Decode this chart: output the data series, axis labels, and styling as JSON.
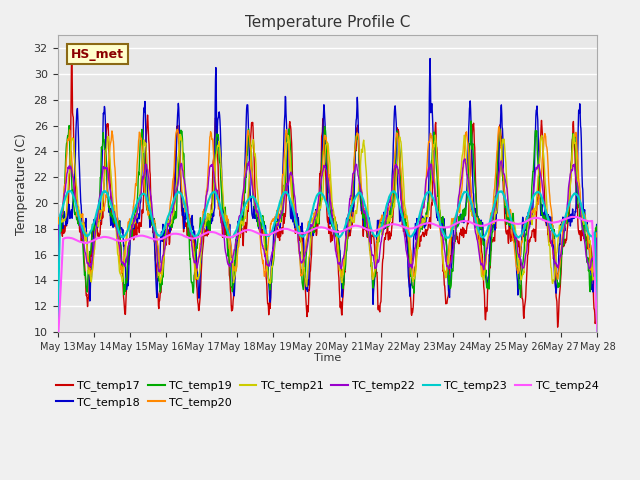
{
  "title": "Temperature Profile C",
  "xlabel": "Time",
  "ylabel": "Temperature (C)",
  "ylim": [
    10,
    33
  ],
  "yticks": [
    10,
    12,
    14,
    16,
    18,
    20,
    22,
    24,
    26,
    28,
    30,
    32
  ],
  "annotation_text": "HS_met",
  "series_colors": {
    "TC_temp17": "#cc0000",
    "TC_temp18": "#0000cc",
    "TC_temp19": "#00aa00",
    "TC_temp20": "#ff8800",
    "TC_temp21": "#cccc00",
    "TC_temp22": "#9900cc",
    "TC_temp23": "#00cccc",
    "TC_temp24": "#ff55ff"
  },
  "background_color": "#e8e8e8",
  "plot_bg_color": "#e8e8e8",
  "grid_color": "#ffffff",
  "figsize": [
    6.4,
    4.8
  ],
  "dpi": 100
}
